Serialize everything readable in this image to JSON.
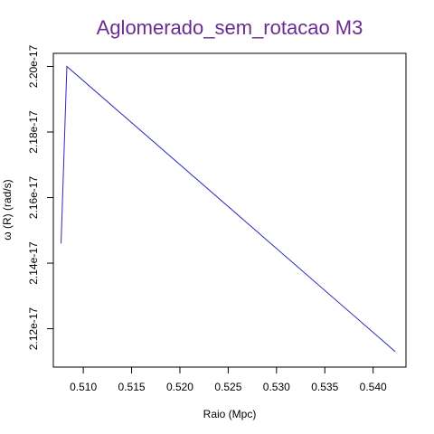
{
  "colors": {
    "title": "#6a2c91",
    "series": "#2b2bb8",
    "axis": "#000000",
    "background": "#ffffff"
  },
  "chart_data": {
    "type": "line",
    "title": "Aglomerado_sem_rotacao M3",
    "xlabel": "Raio (Mpc)",
    "ylabel": "ω (R) (rad/s)",
    "xlim": [
      0.5069,
      0.5434
    ],
    "ylim": [
      2.1083e-17,
      2.204e-17
    ],
    "x_ticks": [
      0.51,
      0.515,
      0.52,
      0.525,
      0.53,
      0.535,
      0.54
    ],
    "x_tick_labels": [
      "0.510",
      "0.515",
      "0.520",
      "0.525",
      "0.530",
      "0.535",
      "0.540"
    ],
    "y_ticks": [
      2.12e-17,
      2.14e-17,
      2.16e-17,
      2.18e-17,
      2.2e-17
    ],
    "y_tick_labels": [
      "2.12e-17",
      "2.14e-17",
      "2.16e-17",
      "2.18e-17",
      "2.20e-17"
    ],
    "grid": false,
    "legend": "none",
    "series": [
      {
        "x": [
          0.5077,
          0.5083,
          0.5423
        ],
        "y": [
          2.146e-17,
          2.2e-17,
          2.113e-17
        ]
      }
    ]
  }
}
